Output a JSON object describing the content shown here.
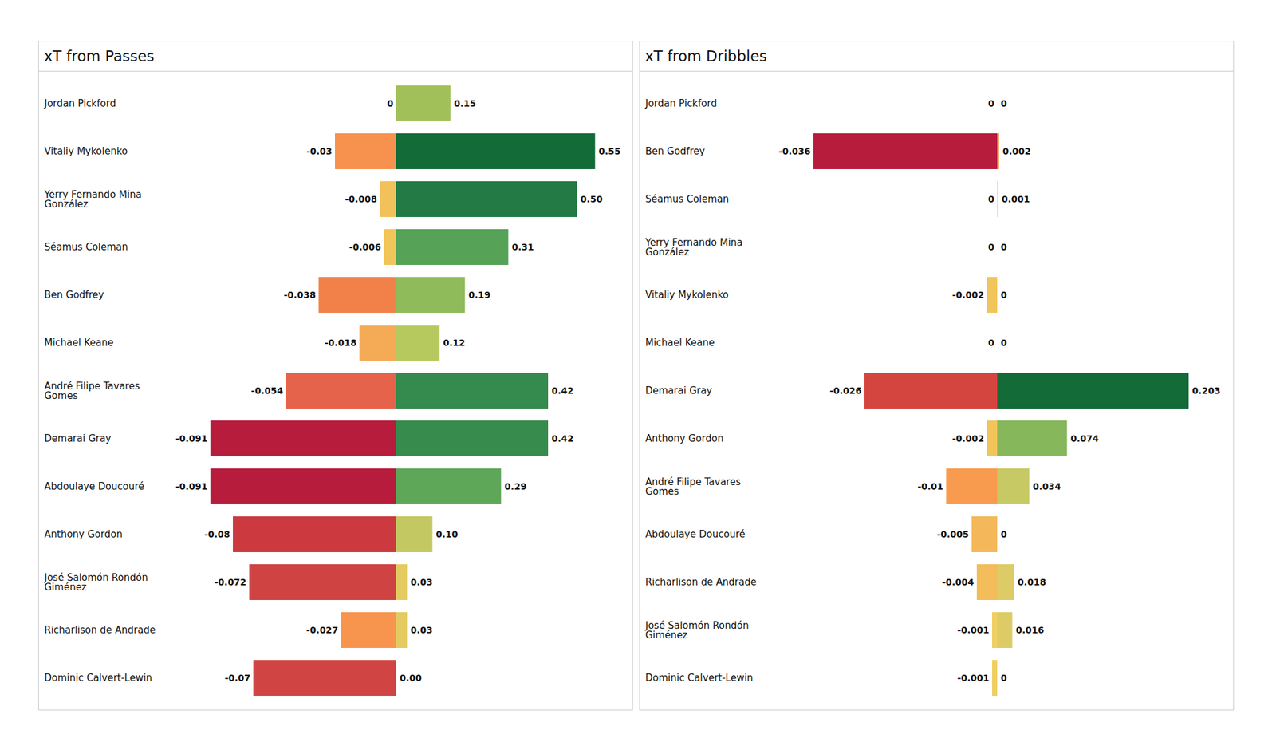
{
  "chart_data": [
    {
      "type": "bar",
      "title": "xT from Passes",
      "orientation": "horizontal",
      "data_labels": true,
      "tick_labels": "y",
      "categories": [
        "Jordan Pickford",
        "Vitaliy Mykolenko",
        "Yerry Fernando Mina González",
        "Séamus Coleman",
        "Ben Godfrey",
        "Michael Keane",
        "André Filipe Tavares Gomes",
        "Demarai Gray",
        "Abdoulaye Doucouré",
        "Anthony Gordon",
        "José Salomón Rondón Giménez",
        "Richarlison de Andrade",
        "Dominic Calvert-Lewin"
      ],
      "series": [
        {
          "values": [
            0,
            -0.03,
            -0.008,
            -0.006,
            -0.038,
            -0.018,
            -0.054,
            -0.091,
            -0.091,
            -0.08,
            -0.072,
            -0.027,
            -0.07
          ],
          "colors": [
            "#f0d060",
            "#f7914e",
            "#f2c15a",
            "#f2c55a",
            "#f28149",
            "#f5aa55",
            "#e6634b",
            "#b71c3c",
            "#b71c3c",
            "#cc3a40",
            "#d04343",
            "#f7954e",
            "#d04443"
          ],
          "xlim": [
            -0.1,
            0
          ]
        },
        {
          "values": [
            0.15,
            0.55,
            0.5,
            0.31,
            0.19,
            0.12,
            0.42,
            0.42,
            0.29,
            0.1,
            0.03,
            0.03,
            0.0
          ],
          "value_labels": [
            "0.15",
            "0.55",
            "0.50",
            "0.31",
            "0.19",
            "0.12",
            "0.42",
            "0.42",
            "0.29",
            "0.10",
            "0.03",
            "0.03",
            "0.00"
          ],
          "colors": [
            "#a2c05a",
            "#136b38",
            "#237a44",
            "#56a257",
            "#8fbb5a",
            "#b5c95e",
            "#358a4d",
            "#378b4d",
            "#5ea658",
            "#c3c862",
            "#e3cb62",
            "#e3cb62",
            "#f0d060"
          ],
          "xlim": [
            0,
            0.6
          ]
        }
      ]
    },
    {
      "type": "bar",
      "title": "xT from Dribbles",
      "orientation": "horizontal",
      "data_labels": true,
      "tick_labels": "y",
      "categories": [
        "Jordan Pickford",
        "Ben Godfrey",
        "Séamus Coleman",
        "Yerry Fernando Mina González",
        "Vitaliy Mykolenko",
        "Michael Keane",
        "Demarai Gray",
        "Anthony Gordon",
        "André Filipe Tavares Gomes",
        "Abdoulaye Doucouré",
        "Richarlison de Andrade",
        "José Salomón Rondón Giménez",
        "Dominic Calvert-Lewin"
      ],
      "series": [
        {
          "values": [
            0,
            -0.036,
            0,
            0,
            -0.002,
            0,
            -0.026,
            -0.002,
            -0.01,
            -0.005,
            -0.004,
            -0.001,
            -0.001
          ],
          "colors": [
            "#f0d060",
            "#b71c3c",
            "#f0d060",
            "#f0d060",
            "#f2c55a",
            "#f0d060",
            "#d5453f",
            "#f2c55a",
            "#f89b4e",
            "#f4b85a",
            "#f2bd5a",
            "#f0cf62",
            "#f0cf62"
          ],
          "xlim": [
            -0.04,
            0
          ]
        },
        {
          "values": [
            0,
            0.002,
            0.001,
            0,
            0,
            0,
            0.203,
            0.074,
            0.034,
            0,
            0.018,
            0.016,
            0
          ],
          "colors": [
            "#f0d060",
            "#f0a050",
            "#f0d060",
            "#f0d060",
            "#f0d060",
            "#f0d060",
            "#136b38",
            "#86b75a",
            "#c6c964",
            "#f0d060",
            "#dccb66",
            "#ddcc66",
            "#f0d060"
          ],
          "xlim": [
            0,
            0.23
          ]
        }
      ]
    }
  ]
}
